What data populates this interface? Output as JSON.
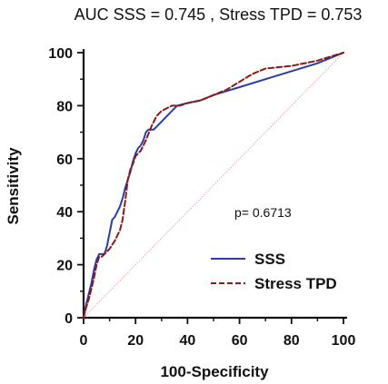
{
  "chart_data": {
    "type": "line",
    "title": "AUC   SSS = 0.745 , Stress TPD = 0.753",
    "xlabel": "100-Specificity",
    "ylabel": "Sensitivity",
    "xlim": [
      0,
      100
    ],
    "ylim": [
      0,
      100
    ],
    "xticks": [
      0,
      20,
      40,
      60,
      80,
      100
    ],
    "yticks": [
      0,
      20,
      40,
      60,
      80,
      100
    ],
    "xtick_labels": [
      "0",
      "20",
      "40",
      "60",
      "80",
      "100"
    ],
    "ytick_labels": [
      "0",
      "20",
      "40",
      "60",
      "80",
      "100"
    ],
    "grid": false,
    "legend_position": "lower-right",
    "annotation": "p= 0.6713",
    "reference_line": {
      "x": [
        0,
        100
      ],
      "y": [
        0,
        100
      ],
      "color": "#e8a0a6",
      "style": "dotted"
    },
    "series": [
      {
        "name": "SSS",
        "color": "#2a3da3",
        "style": "solid",
        "x": [
          0,
          1,
          2,
          3,
          4,
          5,
          6,
          7,
          8,
          9,
          10,
          11,
          12,
          13,
          14,
          15,
          16,
          17,
          18,
          19,
          20,
          21,
          22,
          23,
          24,
          25,
          26,
          27,
          28,
          30,
          32,
          34,
          36,
          40,
          45,
          50,
          60,
          70,
          80,
          90,
          100
        ],
        "y": [
          0,
          5,
          9,
          13,
          18,
          22,
          24,
          24,
          24,
          27,
          32,
          37,
          38,
          40,
          42,
          45,
          49,
          52,
          55,
          59,
          62,
          64,
          65,
          67,
          70,
          71,
          71,
          71,
          72,
          74,
          76,
          78,
          80,
          81,
          82,
          84,
          87,
          90,
          93,
          96,
          100
        ]
      },
      {
        "name": "Stress TPD",
        "color": "#8b1a12",
        "style": "dashed",
        "x": [
          0,
          1,
          2,
          3,
          4,
          5,
          6,
          7,
          8,
          10,
          12,
          14,
          15,
          16,
          17,
          18,
          19,
          20,
          22,
          24,
          26,
          28,
          30,
          32,
          34,
          37,
          40,
          45,
          50,
          55,
          60,
          65,
          70,
          80,
          90,
          100
        ],
        "y": [
          0,
          4,
          7,
          11,
          15,
          20,
          23,
          23,
          24,
          26,
          29,
          33,
          37,
          44,
          52,
          56,
          58,
          61,
          63,
          67,
          72,
          76,
          78,
          79,
          80,
          80,
          81,
          82,
          84,
          86,
          89,
          92,
          94,
          95,
          97,
          100
        ]
      }
    ]
  }
}
